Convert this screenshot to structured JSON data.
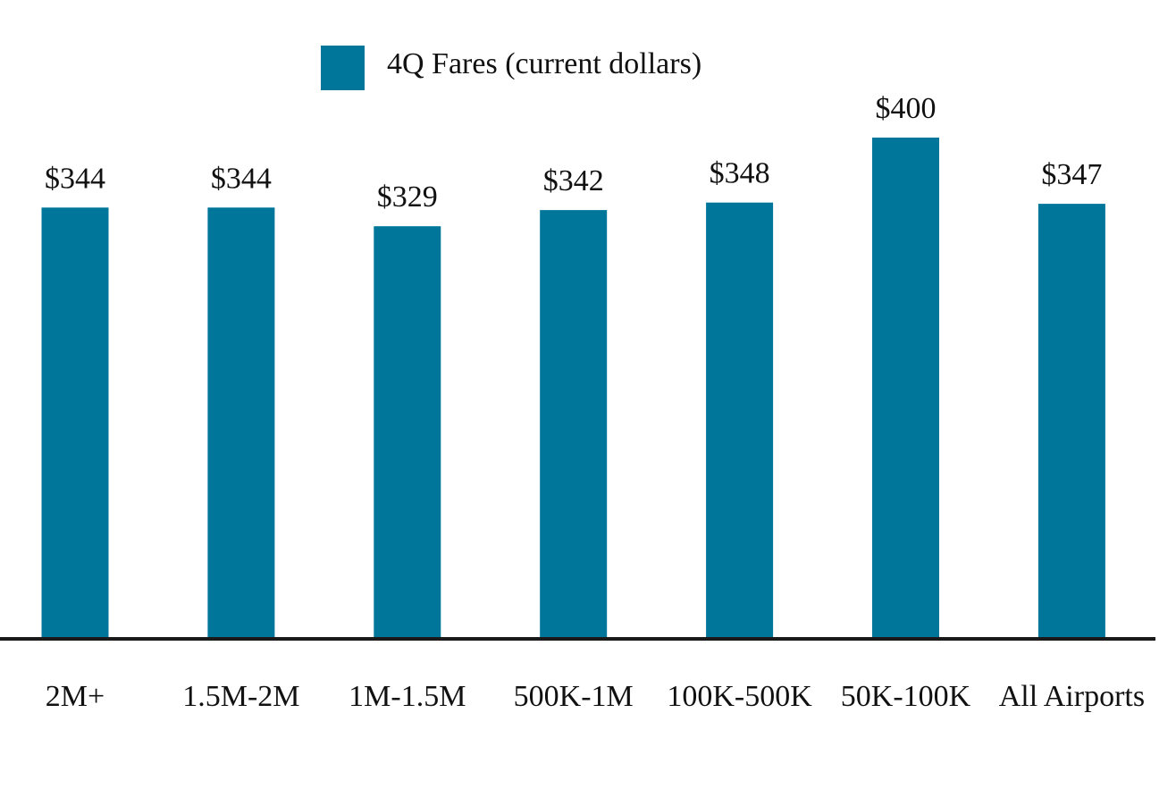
{
  "colors": {
    "bar": "#00769a",
    "axis": "#1a1a1a",
    "text": "#111111"
  },
  "legend": {
    "label": "4Q Fares (current dollars)"
  },
  "chart_data": {
    "type": "bar",
    "categories": [
      "2M+",
      "1.5M-2M",
      "1M-1.5M",
      "500K-1M",
      "100K-500K",
      "50K-100K",
      "All Airports"
    ],
    "series": [
      {
        "name": "4Q Fares (current dollars)",
        "values": [
          344,
          344,
          329,
          342,
          348,
          400,
          347
        ],
        "value_labels": [
          "$344",
          "$344",
          "$329",
          "$342",
          "$348",
          "$400",
          "$347"
        ]
      }
    ],
    "ylim": [
      0,
      400
    ],
    "grid": false,
    "legend_position": "top-center"
  }
}
